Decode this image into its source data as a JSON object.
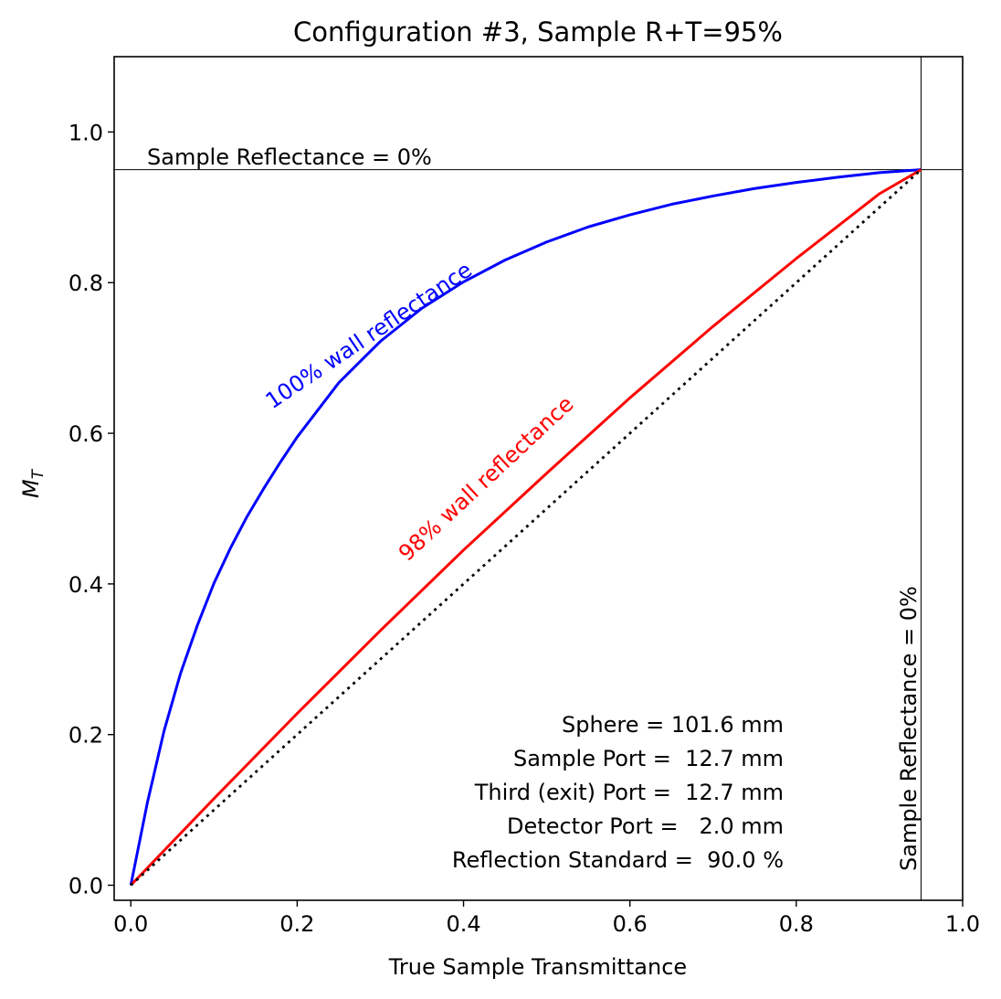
{
  "chart_data": {
    "type": "line",
    "title": "Configuration #3, Sample R+T=95%",
    "xlabel": "True Sample Transmittance",
    "ylabel_base": "M",
    "ylabel_sub": "T",
    "xlim": [
      -0.02,
      1.0
    ],
    "ylim": [
      -0.02,
      1.1
    ],
    "xticks": [
      0.0,
      0.2,
      0.4,
      0.6,
      0.8,
      1.0
    ],
    "xtick_labels": [
      "0.0",
      "0.2",
      "0.4",
      "0.6",
      "0.8",
      "1.0"
    ],
    "yticks": [
      0.0,
      0.2,
      0.4,
      0.6,
      0.8,
      1.0
    ],
    "ytick_labels": [
      "0.0",
      "0.2",
      "0.4",
      "0.6",
      "0.8",
      "1.0"
    ],
    "grid": false,
    "series": [
      {
        "label": "100% wall reflectance",
        "color": "#0000ff",
        "style": "solid",
        "x": [
          0.0,
          0.02,
          0.04,
          0.06,
          0.08,
          0.1,
          0.12,
          0.14,
          0.16,
          0.18,
          0.2,
          0.25,
          0.3,
          0.35,
          0.4,
          0.45,
          0.5,
          0.55,
          0.6,
          0.65,
          0.7,
          0.75,
          0.8,
          0.85,
          0.9,
          0.95
        ],
        "y": [
          0.0,
          0.11,
          0.205,
          0.282,
          0.345,
          0.401,
          0.448,
          0.49,
          0.527,
          0.562,
          0.595,
          0.667,
          0.722,
          0.766,
          0.801,
          0.83,
          0.854,
          0.874,
          0.89,
          0.904,
          0.915,
          0.925,
          0.933,
          0.94,
          0.946,
          0.95
        ]
      },
      {
        "label": "98% wall reflectance",
        "color": "#ff0000",
        "style": "solid",
        "x": [
          0.0,
          0.1,
          0.2,
          0.3,
          0.4,
          0.5,
          0.6,
          0.7,
          0.8,
          0.9,
          0.95
        ],
        "y": [
          0.0,
          0.115,
          0.228,
          0.338,
          0.445,
          0.547,
          0.647,
          0.742,
          0.832,
          0.918,
          0.95
        ]
      },
      {
        "label": "",
        "color": "#000000",
        "style": "dotted",
        "x": [
          0.0,
          0.95
        ],
        "y": [
          0.0,
          0.95
        ]
      }
    ],
    "reference_lines": {
      "horizontal_y": 0.95,
      "vertical_x": 0.95,
      "label": "Sample Reflectance = 0%"
    },
    "annotations": {
      "blue_label": "100% wall reflectance",
      "red_label": "98% wall reflectance",
      "info_lines": [
        "Sphere = 101.6 mm",
        "Sample Port =  12.7 mm",
        "Third (exit) Port =  12.7 mm",
        "Detector Port =   2.0 mm",
        "Reflection Standard =  90.0 %"
      ]
    }
  }
}
